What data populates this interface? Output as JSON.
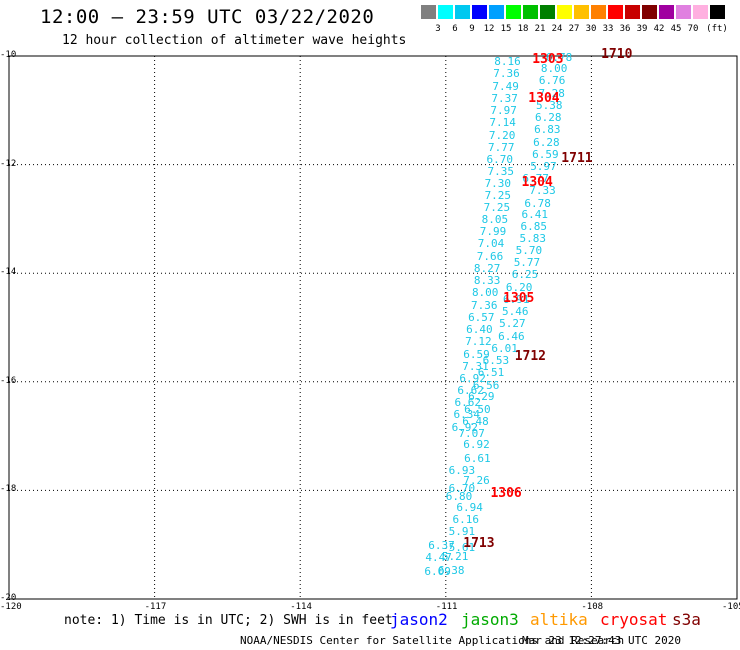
{
  "header": {
    "title": "12:00 – 23:59 UTC 03/22/2020",
    "subtitle": "12 hour collection of altimeter wave heights"
  },
  "legend": {
    "colors": [
      "#808080",
      "#00ffff",
      "#00c8f0",
      "#0000ff",
      "#00a0ff",
      "#00ff00",
      "#00c000",
      "#008000",
      "#ffff00",
      "#ffc000",
      "#ff8000",
      "#ff0000",
      "#c80000",
      "#800000",
      "#a000a0",
      "#e080e0",
      "#ffb0e0",
      "#000000"
    ],
    "labels": [
      "3",
      "6",
      "9",
      "12",
      "15",
      "18",
      "21",
      "24",
      "27",
      "30",
      "33",
      "36",
      "39",
      "42",
      "45",
      "70"
    ],
    "unit": "(ft)"
  },
  "axes": {
    "lat_labels": [
      "-10",
      "-12",
      "-14",
      "-16",
      "-18",
      "-20"
    ],
    "lon_labels": [
      "-120",
      "-117",
      "-114",
      "-111",
      "-108",
      "-105"
    ]
  },
  "wave_points": [
    {
      "v": "6.78",
      "lon": -108.9,
      "lat": -10.02
    },
    {
      "v": "8.16",
      "lon": -109.96,
      "lat": -10.1
    },
    {
      "v": "8.00",
      "lon": -109.0,
      "lat": -10.22
    },
    {
      "v": "7.36",
      "lon": -109.98,
      "lat": -10.32
    },
    {
      "v": "6.76",
      "lon": -109.04,
      "lat": -10.45
    },
    {
      "v": "7.49",
      "lon": -110.0,
      "lat": -10.55
    },
    {
      "v": "7.28",
      "lon": -109.05,
      "lat": -10.68
    },
    {
      "v": "7.37",
      "lon": -110.02,
      "lat": -10.77
    },
    {
      "v": "5.38",
      "lon": -109.1,
      "lat": -10.9
    },
    {
      "v": "7.97",
      "lon": -110.04,
      "lat": -11.0
    },
    {
      "v": "6.28",
      "lon": -109.12,
      "lat": -11.12
    },
    {
      "v": "7.14",
      "lon": -110.06,
      "lat": -11.22
    },
    {
      "v": "6.83",
      "lon": -109.14,
      "lat": -11.35
    },
    {
      "v": "7.20",
      "lon": -110.07,
      "lat": -11.45
    },
    {
      "v": "6.28",
      "lon": -109.16,
      "lat": -11.58
    },
    {
      "v": "7.77",
      "lon": -110.09,
      "lat": -11.68
    },
    {
      "v": "6.59",
      "lon": -109.18,
      "lat": -11.8
    },
    {
      "v": "6.70",
      "lon": -110.12,
      "lat": -11.9
    },
    {
      "v": "5.97",
      "lon": -109.22,
      "lat": -12.02
    },
    {
      "v": "7.35",
      "lon": -110.1,
      "lat": -12.12
    },
    {
      "v": "6.77",
      "lon": -109.38,
      "lat": -12.25
    },
    {
      "v": "7.30",
      "lon": -110.16,
      "lat": -12.34
    },
    {
      "v": "7.33",
      "lon": -109.24,
      "lat": -12.47
    },
    {
      "v": "7.25",
      "lon": -110.16,
      "lat": -12.56
    },
    {
      "v": "6.78",
      "lon": -109.34,
      "lat": -12.7
    },
    {
      "v": "7.25",
      "lon": -110.18,
      "lat": -12.79
    },
    {
      "v": "6.41",
      "lon": -109.4,
      "lat": -12.91
    },
    {
      "v": "8.05",
      "lon": -110.22,
      "lat": -13.0
    },
    {
      "v": "6.85",
      "lon": -109.42,
      "lat": -13.13
    },
    {
      "v": "7.99",
      "lon": -110.26,
      "lat": -13.23
    },
    {
      "v": "5.83",
      "lon": -109.44,
      "lat": -13.35
    },
    {
      "v": "7.04",
      "lon": -110.3,
      "lat": -13.45
    },
    {
      "v": "5.70",
      "lon": -109.52,
      "lat": -13.58
    },
    {
      "v": "7.66",
      "lon": -110.32,
      "lat": -13.68
    },
    {
      "v": "5.77",
      "lon": -109.56,
      "lat": -13.8
    },
    {
      "v": "8.27",
      "lon": -110.38,
      "lat": -13.9
    },
    {
      "v": "6.25",
      "lon": -109.6,
      "lat": -14.02
    },
    {
      "v": "8.33",
      "lon": -110.38,
      "lat": -14.13
    },
    {
      "v": "6.20",
      "lon": -109.72,
      "lat": -14.25
    },
    {
      "v": "8.00",
      "lon": -110.42,
      "lat": -14.35
    },
    {
      "v": "6.91",
      "lon": -109.78,
      "lat": -14.47
    },
    {
      "v": "7.36",
      "lon": -110.44,
      "lat": -14.58
    },
    {
      "v": "5.46",
      "lon": -109.8,
      "lat": -14.7
    },
    {
      "v": "6.57",
      "lon": -110.5,
      "lat": -14.8
    },
    {
      "v": "5.27",
      "lon": -109.86,
      "lat": -14.92
    },
    {
      "v": "6.40",
      "lon": -110.54,
      "lat": -15.03
    },
    {
      "v": "6.46",
      "lon": -109.88,
      "lat": -15.15
    },
    {
      "v": "7.12",
      "lon": -110.56,
      "lat": -15.25
    },
    {
      "v": "6.01",
      "lon": -110.02,
      "lat": -15.37
    },
    {
      "v": "6.59",
      "lon": -110.6,
      "lat": -15.48
    },
    {
      "v": "6.53",
      "lon": -110.2,
      "lat": -15.6
    },
    {
      "v": "7.31",
      "lon": -110.62,
      "lat": -15.7
    },
    {
      "v": "6.51",
      "lon": -110.3,
      "lat": -15.82
    },
    {
      "v": "6.92",
      "lon": -110.68,
      "lat": -15.93
    },
    {
      "v": "6.56",
      "lon": -110.4,
      "lat": -16.05
    },
    {
      "v": "6.62",
      "lon": -110.72,
      "lat": -16.15
    },
    {
      "v": "6.29",
      "lon": -110.5,
      "lat": -16.27
    },
    {
      "v": "6.62",
      "lon": -110.78,
      "lat": -16.38
    },
    {
      "v": "6.50",
      "lon": -110.58,
      "lat": -16.5
    },
    {
      "v": "6.34",
      "lon": -110.8,
      "lat": -16.6
    },
    {
      "v": "6.48",
      "lon": -110.62,
      "lat": -16.72
    },
    {
      "v": "6.92",
      "lon": -110.84,
      "lat": -16.83
    },
    {
      "v": "7.07",
      "lon": -110.7,
      "lat": -16.95
    },
    {
      "v": "6.92",
      "lon": -110.6,
      "lat": -17.15
    },
    {
      "v": "6.61",
      "lon": -110.58,
      "lat": -17.4
    },
    {
      "v": "6.93",
      "lon": -110.9,
      "lat": -17.62
    },
    {
      "v": "7.26",
      "lon": -110.6,
      "lat": -17.8
    },
    {
      "v": "6.70",
      "lon": -110.9,
      "lat": -17.95
    },
    {
      "v": "6.80",
      "lon": -110.96,
      "lat": -18.1
    },
    {
      "v": "6.94",
      "lon": -110.74,
      "lat": -18.3
    },
    {
      "v": "6.16",
      "lon": -110.82,
      "lat": -18.52
    },
    {
      "v": "5.91",
      "lon": -110.9,
      "lat": -18.75
    },
    {
      "v": "5.61",
      "lon": -110.9,
      "lat": -19.05
    },
    {
      "v": "6.37",
      "lon": -111.32,
      "lat": -19.0
    },
    {
      "v": "5.21",
      "lon": -111.04,
      "lat": -19.2
    },
    {
      "v": "4.47",
      "lon": -111.38,
      "lat": -19.22
    },
    {
      "v": "6.38",
      "lon": -111.12,
      "lat": -19.46
    },
    {
      "v": "6.09",
      "lon": -111.4,
      "lat": -19.48
    }
  ],
  "pass_labels": [
    {
      "t": "1710",
      "sat": "s3a",
      "lon": -107.8,
      "lat": -9.97
    },
    {
      "t": "1303",
      "sat": "cryosat",
      "lon": -109.22,
      "lat": -10.06
    },
    {
      "t": "1304",
      "sat": "cryosat",
      "lon": -109.3,
      "lat": -10.78
    },
    {
      "t": "1711",
      "sat": "s3a",
      "lon": -108.62,
      "lat": -11.88
    },
    {
      "t": "1304",
      "sat": "cryosat",
      "lon": -109.44,
      "lat": -12.32
    },
    {
      "t": "1305",
      "sat": "cryosat",
      "lon": -109.82,
      "lat": -14.46
    },
    {
      "t": "1712",
      "sat": "s3a",
      "lon": -109.58,
      "lat": -15.52
    },
    {
      "t": "1306",
      "sat": "cryosat",
      "lon": -110.08,
      "lat": -18.05
    },
    {
      "t": "1713",
      "sat": "s3a",
      "lon": -110.64,
      "lat": -18.96
    }
  ],
  "footer": {
    "note": "note: 1) Time is in UTC; 2) SWH is in feet",
    "satellites": [
      {
        "name": "jason2",
        "color": "#0000ff"
      },
      {
        "name": "jason3",
        "color": "#00aa00"
      },
      {
        "name": "altika",
        "color": "#ff9900"
      },
      {
        "name": "cryosat",
        "color": "#ff0000"
      },
      {
        "name": "s3a",
        "color": "#800000"
      }
    ],
    "credit": "NOAA/NESDIS Center for Satellite Applications and Research",
    "timestamp": "Mar 23 12:27:43 UTC 2020"
  },
  "colors": {
    "wave": "#1ec8e6",
    "cryosat": "#ff0000",
    "s3a": "#800000",
    "grid": "#000000"
  }
}
